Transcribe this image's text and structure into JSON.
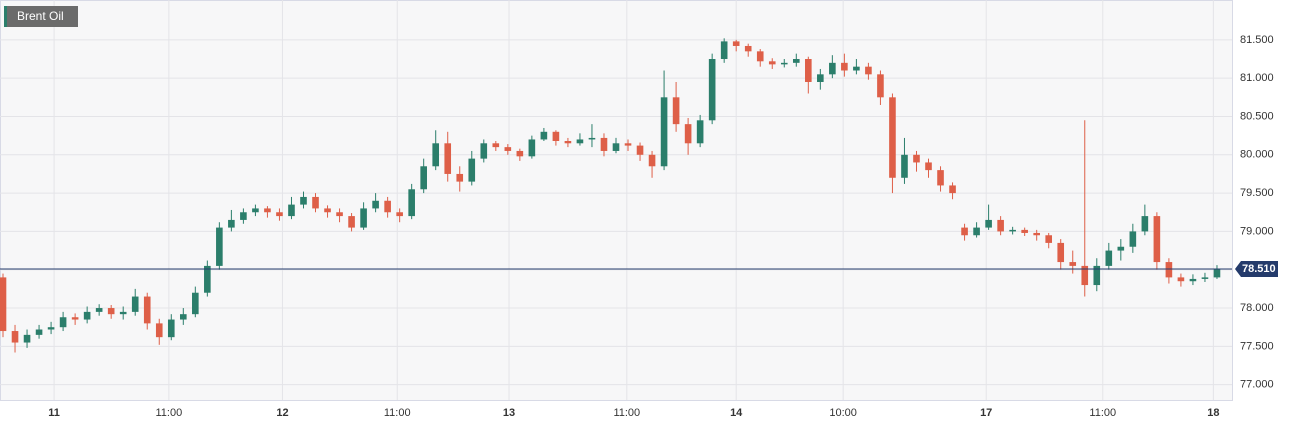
{
  "chart_data": {
    "type": "candlestick",
    "title": "Brent Oil",
    "x": [
      0,
      1,
      2,
      3,
      4,
      5,
      6,
      7,
      8,
      9,
      10,
      11,
      12,
      13,
      14,
      15,
      16,
      17,
      18,
      19,
      20,
      21,
      22,
      23,
      24,
      25,
      26,
      27,
      28,
      29,
      30,
      31,
      32,
      33,
      34,
      35,
      36,
      37,
      38,
      39,
      40,
      41,
      42,
      43,
      44,
      45,
      46,
      47,
      48,
      49,
      50,
      51,
      52,
      53,
      54,
      55,
      56,
      57,
      58,
      59,
      60,
      61,
      62,
      63,
      64,
      65,
      66,
      67,
      68,
      69,
      70,
      71,
      72,
      73,
      74,
      75,
      76,
      77,
      78,
      79,
      80,
      81,
      82,
      83,
      84,
      85,
      86,
      87,
      88,
      89,
      90,
      91,
      92,
      93,
      94,
      95,
      96,
      97,
      98,
      99,
      100,
      101
    ],
    "open": [
      78.4,
      77.7,
      77.55,
      77.65,
      77.72,
      77.75,
      77.88,
      77.85,
      77.95,
      78.0,
      77.92,
      77.95,
      78.15,
      77.8,
      77.62,
      77.85,
      77.92,
      78.2,
      78.55,
      79.05,
      79.15,
      79.25,
      79.3,
      79.25,
      79.2,
      79.35,
      79.45,
      79.3,
      79.25,
      79.2,
      79.05,
      79.3,
      79.4,
      79.25,
      79.2,
      79.55,
      79.85,
      80.15,
      79.75,
      79.65,
      79.95,
      80.15,
      80.1,
      80.05,
      79.98,
      80.2,
      80.3,
      80.18,
      80.15,
      80.2,
      80.22,
      80.05,
      80.15,
      80.12,
      80.0,
      79.85,
      80.75,
      80.4,
      80.15,
      80.45,
      81.25,
      81.48,
      81.42,
      81.35,
      81.22,
      81.18,
      81.2,
      81.25,
      80.95,
      81.05,
      81.2,
      81.1,
      81.15,
      81.05,
      80.75,
      79.7,
      80.0,
      79.9,
      79.8,
      79.6,
      79.05,
      78.95,
      79.05,
      79.15,
      79.0,
      79.02,
      78.98,
      78.95,
      78.85,
      78.6,
      78.55,
      78.3,
      78.55,
      78.75,
      78.8,
      79.0,
      79.2,
      78.6,
      78.4,
      78.35,
      78.38,
      78.4
    ],
    "high": [
      78.45,
      77.78,
      77.72,
      77.78,
      77.82,
      77.95,
      77.93,
      78.02,
      78.05,
      78.04,
      78.02,
      78.25,
      78.2,
      77.86,
      77.92,
      78.0,
      78.28,
      78.62,
      79.12,
      79.28,
      79.3,
      79.35,
      79.33,
      79.3,
      79.45,
      79.52,
      79.5,
      79.34,
      79.3,
      79.24,
      79.38,
      79.5,
      79.45,
      79.3,
      79.62,
      79.95,
      80.32,
      80.3,
      79.85,
      80.05,
      80.2,
      80.18,
      80.14,
      80.08,
      80.25,
      80.35,
      80.32,
      80.22,
      80.28,
      80.4,
      80.28,
      80.22,
      80.2,
      80.16,
      80.05,
      81.1,
      80.95,
      80.48,
      80.52,
      81.32,
      81.52,
      81.5,
      81.45,
      81.38,
      81.26,
      81.25,
      81.32,
      81.28,
      81.12,
      81.3,
      81.32,
      81.25,
      81.2,
      81.1,
      80.8,
      80.22,
      80.05,
      79.95,
      79.85,
      79.64,
      79.1,
      79.12,
      79.35,
      79.2,
      79.06,
      79.05,
      79.02,
      78.98,
      78.9,
      78.75,
      80.45,
      78.65,
      78.85,
      78.9,
      79.1,
      79.35,
      79.25,
      78.65,
      78.45,
      78.44,
      78.46,
      78.56
    ],
    "low": [
      77.62,
      77.42,
      77.48,
      77.6,
      77.66,
      77.7,
      77.78,
      77.8,
      77.9,
      77.86,
      77.85,
      77.9,
      77.72,
      77.52,
      77.58,
      77.78,
      77.88,
      78.15,
      78.5,
      79.0,
      79.1,
      79.2,
      79.18,
      79.14,
      79.16,
      79.3,
      79.25,
      79.18,
      79.12,
      79.0,
      79.02,
      79.25,
      79.18,
      79.12,
      79.16,
      79.5,
      79.8,
      79.65,
      79.52,
      79.6,
      79.9,
      80.05,
      80.0,
      79.92,
      79.95,
      80.18,
      80.12,
      80.1,
      80.12,
      80.1,
      79.98,
      80.02,
      80.05,
      79.92,
      79.7,
      79.8,
      80.3,
      80.0,
      80.1,
      80.4,
      81.2,
      81.35,
      81.28,
      81.15,
      81.12,
      81.14,
      81.15,
      80.8,
      80.85,
      81.0,
      81.02,
      81.05,
      80.98,
      80.65,
      79.5,
      79.62,
      79.78,
      79.7,
      79.52,
      79.42,
      78.88,
      78.92,
      79.02,
      78.95,
      78.96,
      78.94,
      78.88,
      78.78,
      78.5,
      78.45,
      78.15,
      78.22,
      78.5,
      78.62,
      78.72,
      78.95,
      78.5,
      78.32,
      78.28,
      78.3,
      78.34,
      78.38
    ],
    "close": [
      77.7,
      77.55,
      77.65,
      77.72,
      77.75,
      77.88,
      77.85,
      77.95,
      78.0,
      77.92,
      77.95,
      78.15,
      77.8,
      77.62,
      77.85,
      77.92,
      78.2,
      78.55,
      79.05,
      79.15,
      79.25,
      79.3,
      79.25,
      79.2,
      79.35,
      79.45,
      79.3,
      79.25,
      79.2,
      79.05,
      79.3,
      79.4,
      79.25,
      79.2,
      79.55,
      79.85,
      80.15,
      79.75,
      79.65,
      79.95,
      80.15,
      80.1,
      80.05,
      79.98,
      80.2,
      80.3,
      80.18,
      80.15,
      80.2,
      80.22,
      80.05,
      80.15,
      80.12,
      80.0,
      79.85,
      80.75,
      80.4,
      80.15,
      80.45,
      81.25,
      81.48,
      81.42,
      81.35,
      81.22,
      81.18,
      81.2,
      81.25,
      80.95,
      81.05,
      81.2,
      81.1,
      81.15,
      81.05,
      80.75,
      79.7,
      80.0,
      79.9,
      79.8,
      79.6,
      79.5,
      78.95,
      79.05,
      79.15,
      79.0,
      79.02,
      78.98,
      78.95,
      78.85,
      78.6,
      78.55,
      78.3,
      78.55,
      78.75,
      78.8,
      79.0,
      79.2,
      78.6,
      78.4,
      78.35,
      78.38,
      78.4,
      78.51
    ],
    "up_color": "#2b7e6b",
    "down_color": "#de5f48",
    "last_price": 78.51,
    "last_price_label": "78.510",
    "last_price_color": "#243b6b",
    "xlim": [
      -0.25,
      102.25
    ],
    "ylim": [
      76.8,
      82.02
    ],
    "xticks": [
      {
        "value": 4.25,
        "label": "11"
      },
      {
        "value": 13.8,
        "label": "11:00"
      },
      {
        "value": 23.25,
        "label": "12"
      },
      {
        "value": 32.8,
        "label": "11:00"
      },
      {
        "value": 42.1,
        "label": "13"
      },
      {
        "value": 51.9,
        "label": "11:00"
      },
      {
        "value": 61,
        "label": "14"
      },
      {
        "value": 69.9,
        "label": "10:00"
      },
      {
        "value": 81.8,
        "label": "17"
      },
      {
        "value": 91.5,
        "label": "11:00"
      },
      {
        "value": 100.7,
        "label": "18"
      }
    ],
    "yticks": [
      {
        "value": 77,
        "label": "77.000"
      },
      {
        "value": 77.5,
        "label": "77.500"
      },
      {
        "value": 78,
        "label": "78.000"
      },
      {
        "value": 78.5,
        "label": "78.500"
      },
      {
        "value": 79,
        "label": "79.000"
      },
      {
        "value": 79.5,
        "label": "79.500"
      },
      {
        "value": 80,
        "label": "80.000"
      },
      {
        "value": 80.5,
        "label": "80.500"
      },
      {
        "value": 81,
        "label": "81.000"
      },
      {
        "value": 81.5,
        "label": "81.500"
      }
    ],
    "grid": true
  }
}
